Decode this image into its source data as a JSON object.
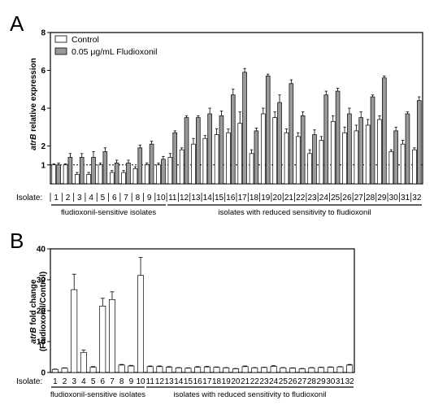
{
  "panel_labels": [
    "A",
    "B"
  ],
  "colors": {
    "control": "#ffffff",
    "treated": "#9a9a9a",
    "line": "#000000"
  },
  "chart_data": [
    {
      "type": "bar",
      "panel": "A",
      "title": "",
      "ylabel": "atrB relative expression",
      "ylabel_parts": [
        "atrB",
        " relative expression"
      ],
      "xlabel": "Isolate:",
      "yticks": [
        "1",
        "2",
        "4",
        "6",
        "8"
      ],
      "ylim": [
        0,
        8
      ],
      "reference_line": 1,
      "legend": {
        "position": "top-left"
      },
      "categories": [
        "1",
        "2",
        "3",
        "4",
        "5",
        "6",
        "7",
        "8",
        "9",
        "10",
        "11",
        "12",
        "13",
        "14",
        "15",
        "16",
        "17",
        "18",
        "19",
        "20",
        "21",
        "22",
        "23",
        "24",
        "25",
        "26",
        "27",
        "28",
        "29",
        "30",
        "31",
        "32"
      ],
      "series": [
        {
          "name": "Control",
          "values": [
            1.0,
            1.0,
            0.5,
            0.5,
            1.0,
            0.6,
            0.6,
            0.8,
            1.0,
            1.0,
            1.4,
            1.8,
            2.1,
            2.4,
            2.6,
            2.7,
            3.2,
            1.6,
            3.7,
            3.5,
            2.7,
            2.5,
            1.6,
            2.3,
            3.3,
            2.7,
            2.8,
            3.1,
            3.4,
            1.7,
            2.1,
            1.8
          ],
          "errors": [
            0.05,
            0.05,
            0.1,
            0.1,
            0.1,
            0.1,
            0.1,
            0.1,
            0.1,
            0.1,
            0.2,
            0.1,
            0.3,
            0.15,
            0.3,
            0.2,
            0.6,
            0.2,
            0.3,
            0.3,
            0.2,
            0.2,
            0.2,
            0.2,
            0.3,
            0.3,
            0.3,
            0.3,
            0.2,
            0.1,
            0.2,
            0.1
          ]
        },
        {
          "name": "0.05 μg/mL Fludioxonil",
          "values": [
            1.0,
            1.4,
            1.4,
            1.4,
            1.7,
            1.1,
            1.1,
            1.9,
            2.1,
            1.3,
            2.7,
            3.5,
            3.5,
            3.7,
            3.6,
            4.7,
            5.9,
            2.8,
            5.7,
            4.3,
            5.3,
            3.6,
            2.6,
            4.7,
            4.9,
            3.7,
            3.5,
            4.6,
            5.6,
            2.8,
            3.7,
            4.4
          ],
          "errors": [
            0.1,
            0.2,
            0.2,
            0.3,
            0.2,
            0.15,
            0.15,
            0.15,
            0.15,
            0.15,
            0.1,
            0.1,
            0.1,
            0.3,
            0.25,
            0.3,
            0.2,
            0.15,
            0.1,
            0.4,
            0.2,
            0.2,
            0.25,
            0.2,
            0.15,
            0.3,
            0.3,
            0.1,
            0.1,
            0.2,
            0.1,
            0.2
          ]
        }
      ],
      "groups": [
        {
          "label": "fludioxonil-sensitive isolates",
          "from": 1,
          "to": 10
        },
        {
          "label": "isolates with reduced sensitivity to fludioxonil",
          "from": 11,
          "to": 32
        }
      ]
    },
    {
      "type": "bar",
      "panel": "B",
      "title": "",
      "ylabel": "atrB fold change (Fludioxonil/Control)",
      "ylabel_parts": [
        "atrB",
        " fold change",
        "(Fludioxonil/Control)"
      ],
      "xlabel": "Isolate:",
      "yticks": [
        "0",
        "10",
        "20",
        "30",
        "40"
      ],
      "ylim": [
        0,
        40
      ],
      "categories": [
        "1",
        "2",
        "3",
        "4",
        "5",
        "6",
        "7",
        "8",
        "9",
        "10",
        "11",
        "12",
        "13",
        "14",
        "15",
        "16",
        "17",
        "18",
        "19",
        "20",
        "21",
        "22",
        "23",
        "24",
        "25",
        "26",
        "27",
        "28",
        "29",
        "30",
        "31",
        "32"
      ],
      "series": [
        {
          "name": "",
          "values": [
            1.0,
            1.4,
            26.8,
            6.5,
            1.7,
            21.5,
            23.6,
            2.4,
            2.1,
            31.4,
            1.9,
            1.9,
            1.7,
            1.5,
            1.4,
            1.7,
            1.8,
            1.7,
            1.5,
            1.2,
            1.9,
            1.5,
            1.6,
            2.0,
            1.5,
            1.4,
            1.2,
            1.5,
            1.6,
            1.7,
            1.8,
            2.4
          ],
          "errors": [
            0.1,
            0.1,
            5.0,
            0.8,
            0.2,
            2.5,
            2.5,
            0.2,
            0.2,
            5.8,
            0.2,
            0.2,
            0.2,
            0.1,
            0.1,
            0.2,
            0.2,
            0.1,
            0.1,
            0.1,
            0.2,
            0.1,
            0.1,
            0.2,
            0.1,
            0.1,
            0.1,
            0.1,
            0.1,
            0.1,
            0.1,
            0.2
          ]
        }
      ],
      "groups": [
        {
          "label": "fludioxonil-sensitive isolates",
          "from": 1,
          "to": 10
        },
        {
          "label": "isolates with reduced sensitivity to fludioxonil",
          "from": 11,
          "to": 32
        }
      ]
    }
  ]
}
